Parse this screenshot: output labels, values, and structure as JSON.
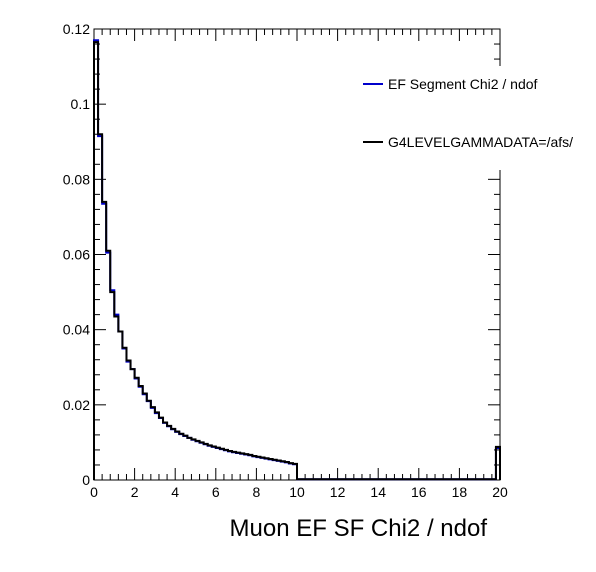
{
  "chart_data": {
    "type": "histogram",
    "title": "",
    "xlabel": "Muon EF SF Chi2 / ndof",
    "ylabel": "",
    "xlim": [
      0,
      20
    ],
    "ylim": [
      0,
      0.12
    ],
    "grid": false,
    "legend_position": "top-right",
    "bin_width": 0.2,
    "x_ticks": [
      "0",
      "2",
      "4",
      "6",
      "8",
      "10",
      "12",
      "14",
      "16",
      "18",
      "20"
    ],
    "y_ticks": [
      "0",
      "0.02",
      "0.04",
      "0.06",
      "0.08",
      "0.1",
      "0.12"
    ],
    "series": [
      {
        "name": "EF Segment Chi2 / ndof",
        "color": "#0000cc",
        "values": [
          0.117,
          0.0915,
          0.0735,
          0.0605,
          0.0505,
          0.044,
          0.0395,
          0.035,
          0.0315,
          0.0295,
          0.027,
          0.0248,
          0.0228,
          0.021,
          0.0192,
          0.0178,
          0.0165,
          0.0152,
          0.0143,
          0.0135,
          0.0128,
          0.0122,
          0.0117,
          0.0112,
          0.0107,
          0.0103,
          0.0099,
          0.0095,
          0.0091,
          0.0088,
          0.0085,
          0.0082,
          0.0079,
          0.0076,
          0.0074,
          0.0072,
          0.007,
          0.0068,
          0.0066,
          0.0063,
          0.0061,
          0.0059,
          0.0057,
          0.0055,
          0.0053,
          0.0051,
          0.0049,
          0.0047,
          0.0044,
          0.0042,
          0.0002,
          0.0002,
          0.0002,
          0.0002,
          0.0002,
          0.0002,
          0.0002,
          0.0002,
          0.0002,
          0.0002,
          0.0002,
          0.0002,
          0.0002,
          0.0002,
          0.0002,
          0.0002,
          0.0002,
          0.0002,
          0.0002,
          0.0002,
          0.0002,
          0.0002,
          0.0002,
          0.0002,
          0.0002,
          0.0002,
          0.0002,
          0.0002,
          0.0002,
          0.0002,
          0.0002,
          0.0002,
          0.0002,
          0.0002,
          0.0002,
          0.0002,
          0.0002,
          0.0002,
          0.0002,
          0.0002,
          0.0002,
          0.0002,
          0.0002,
          0.0002,
          0.0002,
          0.0002,
          0.0002,
          0.0002,
          0.0002,
          0.0085
        ]
      },
      {
        "name": "G4LEVELGAMMADATA=/afs/",
        "color": "#000000",
        "values": [
          0.1165,
          0.092,
          0.074,
          0.061,
          0.05,
          0.0435,
          0.0395,
          0.0352,
          0.0318,
          0.0295,
          0.0272,
          0.025,
          0.023,
          0.0211,
          0.0194,
          0.018,
          0.0166,
          0.0153,
          0.0144,
          0.0136,
          0.0129,
          0.0123,
          0.0118,
          0.0112,
          0.0108,
          0.0104,
          0.01,
          0.0096,
          0.0092,
          0.0089,
          0.0086,
          0.0083,
          0.008,
          0.0077,
          0.0075,
          0.0073,
          0.0071,
          0.0069,
          0.0067,
          0.0064,
          0.0062,
          0.006,
          0.0058,
          0.0056,
          0.0054,
          0.0052,
          0.005,
          0.0048,
          0.0045,
          0.0043,
          0.0002,
          0.0002,
          0.0002,
          0.0002,
          0.0002,
          0.0002,
          0.0002,
          0.0002,
          0.0002,
          0.0002,
          0.0002,
          0.0002,
          0.0002,
          0.0002,
          0.0002,
          0.0002,
          0.0002,
          0.0002,
          0.0002,
          0.0002,
          0.0002,
          0.0002,
          0.0002,
          0.0002,
          0.0002,
          0.0002,
          0.0002,
          0.0002,
          0.0002,
          0.0002,
          0.0002,
          0.0002,
          0.0002,
          0.0002,
          0.0002,
          0.0002,
          0.0002,
          0.0002,
          0.0002,
          0.0002,
          0.0002,
          0.0002,
          0.0002,
          0.0002,
          0.0002,
          0.0002,
          0.0002,
          0.0002,
          0.0002,
          0.0088
        ]
      }
    ]
  }
}
